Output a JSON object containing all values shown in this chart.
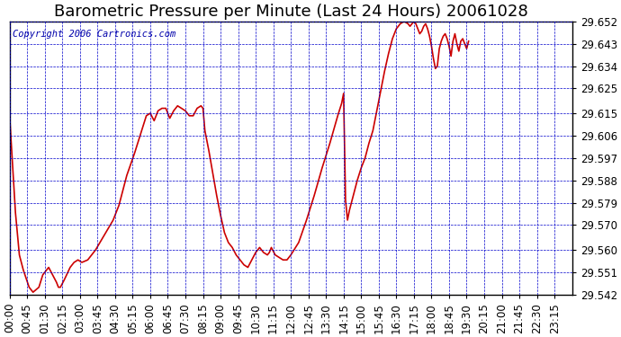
{
  "title": "Barometric Pressure per Minute (Last 24 Hours) 20061028",
  "copyright": "Copyright 2006 Cartronics.com",
  "line_color": "#cc0000",
  "bg_color": "#ffffff",
  "plot_bg_color": "#ffffff",
  "grid_color": "#0000cc",
  "axes_color": "#000000",
  "y_ticks": [
    29.542,
    29.551,
    29.56,
    29.57,
    29.579,
    29.588,
    29.597,
    29.606,
    29.615,
    29.625,
    29.634,
    29.643,
    29.652
  ],
  "ylim": [
    29.542,
    29.652
  ],
  "x_tick_labels": [
    "00:00",
    "00:45",
    "01:30",
    "02:15",
    "03:00",
    "03:45",
    "04:30",
    "05:15",
    "06:00",
    "06:45",
    "07:30",
    "08:15",
    "09:00",
    "09:45",
    "10:30",
    "11:15",
    "12:00",
    "12:45",
    "13:30",
    "14:15",
    "15:00",
    "15:45",
    "16:30",
    "17:15",
    "18:00",
    "18:45",
    "19:30",
    "20:15",
    "21:00",
    "21:45",
    "22:30",
    "23:15"
  ],
  "data_points": [
    [
      0,
      29.614
    ],
    [
      15,
      29.575
    ],
    [
      25,
      29.558
    ],
    [
      35,
      29.552
    ],
    [
      50,
      29.545
    ],
    [
      60,
      29.543
    ],
    [
      75,
      29.545
    ],
    [
      85,
      29.55
    ],
    [
      100,
      29.553
    ],
    [
      110,
      29.55
    ],
    [
      120,
      29.547
    ],
    [
      125,
      29.545
    ],
    [
      130,
      29.545
    ],
    [
      140,
      29.548
    ],
    [
      155,
      29.553
    ],
    [
      165,
      29.555
    ],
    [
      175,
      29.556
    ],
    [
      185,
      29.555
    ],
    [
      200,
      29.556
    ],
    [
      210,
      29.558
    ],
    [
      220,
      29.56
    ],
    [
      235,
      29.564
    ],
    [
      250,
      29.568
    ],
    [
      265,
      29.572
    ],
    [
      280,
      29.578
    ],
    [
      300,
      29.59
    ],
    [
      320,
      29.599
    ],
    [
      330,
      29.604
    ],
    [
      340,
      29.609
    ],
    [
      350,
      29.614
    ],
    [
      360,
      29.615
    ],
    [
      370,
      29.612
    ],
    [
      380,
      29.616
    ],
    [
      390,
      29.617
    ],
    [
      400,
      29.617
    ],
    [
      410,
      29.613
    ],
    [
      420,
      29.616
    ],
    [
      430,
      29.618
    ],
    [
      440,
      29.617
    ],
    [
      450,
      29.616
    ],
    [
      460,
      29.614
    ],
    [
      470,
      29.614
    ],
    [
      480,
      29.617
    ],
    [
      490,
      29.618
    ],
    [
      495,
      29.617
    ],
    [
      500,
      29.608
    ],
    [
      510,
      29.6
    ],
    [
      520,
      29.591
    ],
    [
      530,
      29.582
    ],
    [
      540,
      29.574
    ],
    [
      550,
      29.567
    ],
    [
      560,
      29.563
    ],
    [
      570,
      29.561
    ],
    [
      580,
      29.558
    ],
    [
      590,
      29.556
    ],
    [
      600,
      29.554
    ],
    [
      610,
      29.553
    ],
    [
      620,
      29.556
    ],
    [
      630,
      29.559
    ],
    [
      640,
      29.561
    ],
    [
      650,
      29.559
    ],
    [
      660,
      29.558
    ],
    [
      665,
      29.559
    ],
    [
      670,
      29.561
    ],
    [
      680,
      29.558
    ],
    [
      690,
      29.557
    ],
    [
      700,
      29.556
    ],
    [
      710,
      29.556
    ],
    [
      720,
      29.558
    ],
    [
      740,
      29.563
    ],
    [
      760,
      29.572
    ],
    [
      780,
      29.582
    ],
    [
      800,
      29.593
    ],
    [
      820,
      29.603
    ],
    [
      840,
      29.614
    ],
    [
      850,
      29.619
    ],
    [
      855,
      29.623
    ],
    [
      860,
      29.58
    ],
    [
      865,
      29.572
    ],
    [
      870,
      29.576
    ],
    [
      875,
      29.579
    ],
    [
      880,
      29.582
    ],
    [
      890,
      29.588
    ],
    [
      900,
      29.593
    ],
    [
      910,
      29.597
    ],
    [
      920,
      29.603
    ],
    [
      930,
      29.608
    ],
    [
      940,
      29.616
    ],
    [
      950,
      29.624
    ],
    [
      960,
      29.632
    ],
    [
      970,
      29.639
    ],
    [
      980,
      29.645
    ],
    [
      990,
      29.649
    ],
    [
      1000,
      29.651
    ],
    [
      1010,
      29.652
    ],
    [
      1020,
      29.651
    ],
    [
      1025,
      29.65
    ],
    [
      1030,
      29.651
    ],
    [
      1035,
      29.652
    ],
    [
      1040,
      29.651
    ],
    [
      1045,
      29.649
    ],
    [
      1050,
      29.647
    ],
    [
      1055,
      29.648
    ],
    [
      1060,
      29.65
    ],
    [
      1065,
      29.651
    ],
    [
      1070,
      29.649
    ],
    [
      1075,
      29.646
    ],
    [
      1080,
      29.642
    ],
    [
      1085,
      29.637
    ],
    [
      1090,
      29.633
    ],
    [
      1095,
      29.634
    ],
    [
      1100,
      29.641
    ],
    [
      1105,
      29.644
    ],
    [
      1110,
      29.646
    ],
    [
      1115,
      29.647
    ],
    [
      1120,
      29.645
    ],
    [
      1125,
      29.642
    ],
    [
      1130,
      29.638
    ],
    [
      1135,
      29.644
    ],
    [
      1140,
      29.647
    ],
    [
      1145,
      29.643
    ],
    [
      1150,
      29.64
    ],
    [
      1155,
      29.644
    ],
    [
      1160,
      29.645
    ],
    [
      1165,
      29.643
    ],
    [
      1170,
      29.641
    ],
    [
      1175,
      29.644
    ]
  ],
  "title_fontsize": 13,
  "copyright_fontsize": 7.5,
  "tick_fontsize": 8.5,
  "line_width": 1.2
}
